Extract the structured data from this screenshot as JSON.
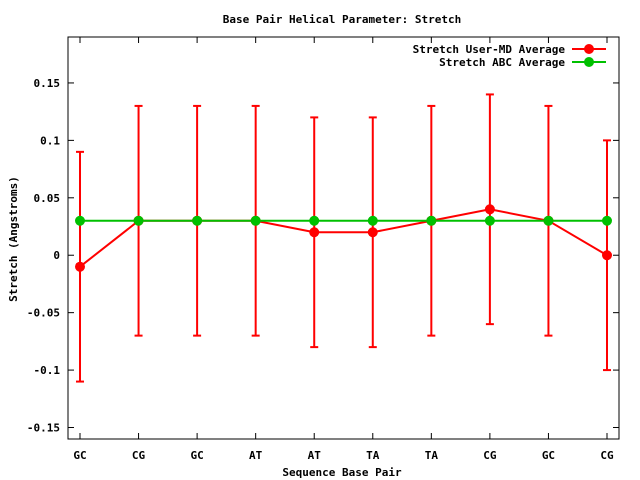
{
  "chart_data": {
    "type": "line",
    "title": "Base Pair Helical Parameter: Stretch",
    "xlabel": "Sequence Base Pair",
    "ylabel": "Stretch (Angstroms)",
    "categories": [
      "GC",
      "CG",
      "GC",
      "AT",
      "AT",
      "TA",
      "TA",
      "CG",
      "GC",
      "CG"
    ],
    "ylim": [
      -0.16,
      0.19
    ],
    "yticks": [
      -0.15,
      -0.1,
      -0.05,
      0,
      0.05,
      0.1,
      0.15
    ],
    "ytick_labels": [
      "-0.15",
      "-0.1",
      "-0.05",
      "0",
      "0.05",
      "0.1",
      "0.15"
    ],
    "grid": false,
    "legend_position": "top-right",
    "series": [
      {
        "name": "Stretch User-MD Average",
        "color": "#ff0000",
        "values": [
          -0.01,
          0.03,
          0.03,
          0.03,
          0.02,
          0.02,
          0.03,
          0.04,
          0.03,
          0.0
        ],
        "error_low": [
          -0.11,
          -0.07,
          -0.07,
          -0.07,
          -0.08,
          -0.08,
          -0.07,
          -0.06,
          -0.07,
          -0.1
        ],
        "error_high": [
          0.09,
          0.13,
          0.13,
          0.13,
          0.12,
          0.12,
          0.13,
          0.14,
          0.13,
          0.1
        ]
      },
      {
        "name": "Stretch ABC Average",
        "color": "#00c000",
        "values": [
          0.03,
          0.03,
          0.03,
          0.03,
          0.03,
          0.03,
          0.03,
          0.03,
          0.03,
          0.03
        ]
      }
    ]
  }
}
